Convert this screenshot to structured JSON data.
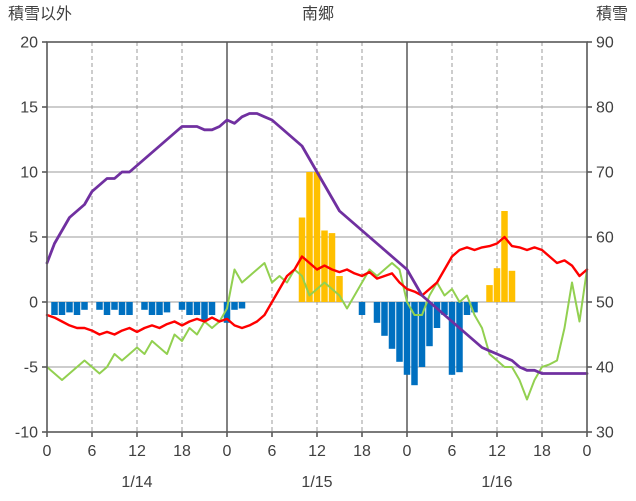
{
  "chart_data": {
    "type": "line",
    "title": "南郷",
    "left_axis": {
      "label": "積雪以外",
      "max": 20,
      "min": -10,
      "ticks": [
        20,
        15,
        10,
        5,
        0,
        -5,
        -10
      ]
    },
    "right_axis": {
      "label": "積雪",
      "max": 90,
      "min": 30,
      "ticks": [
        90,
        80,
        70,
        60,
        50,
        40,
        30
      ]
    },
    "hours_total": 72,
    "x_ticks": [
      "0",
      "6",
      "12",
      "18",
      "0",
      "6",
      "12",
      "18",
      "0",
      "6",
      "12",
      "18",
      "0"
    ],
    "date_labels": [
      "1/14",
      "1/15",
      "1/16"
    ],
    "grid": "on",
    "legend": "none",
    "colors": {
      "text": "#404040",
      "border": "#595959",
      "grid": "#9b9b9b",
      "grid_major": "#595959",
      "purple": "#7030A0",
      "red": "#FF0000",
      "green": "#92D050",
      "orange": "#FFC000",
      "blue": "#0070C0"
    },
    "series_lines": [
      {
        "name": "green-series",
        "color": "#92D050",
        "axis": "left",
        "width": 2,
        "values": [
          -5.0,
          -5.5,
          -6.0,
          -5.5,
          -5.0,
          -4.5,
          -5.0,
          -5.5,
          -5.0,
          -4.0,
          -4.5,
          -4.0,
          -3.5,
          -4.0,
          -3.0,
          -3.5,
          -4.0,
          -2.5,
          -3.0,
          -2.0,
          -2.5,
          -1.5,
          -2.0,
          -1.5,
          -0.5,
          2.5,
          1.5,
          2.0,
          2.5,
          3.0,
          1.5,
          2.0,
          1.5,
          2.5,
          2.0,
          0.5,
          1.0,
          1.5,
          1.0,
          0.5,
          -0.5,
          0.5,
          1.5,
          2.5,
          2.0,
          2.5,
          3.0,
          2.5,
          0.0,
          -1.0,
          -1.0,
          0.5,
          1.5,
          0.5,
          1.0,
          0.0,
          0.5,
          -1.0,
          -2.0,
          -4.0,
          -4.5,
          -5.0,
          -5.0,
          -6.0,
          -7.5,
          -6.0,
          -5.0,
          -4.8,
          -4.5,
          -2.0,
          1.5,
          -1.5,
          2.5
        ]
      },
      {
        "name": "red-series",
        "color": "#FF0000",
        "axis": "left",
        "width": 2.4,
        "values": [
          -1.0,
          -1.2,
          -1.5,
          -1.8,
          -2.0,
          -2.0,
          -2.2,
          -2.5,
          -2.3,
          -2.5,
          -2.2,
          -2.0,
          -2.3,
          -2.0,
          -1.8,
          -2.0,
          -1.7,
          -1.5,
          -1.8,
          -1.5,
          -1.3,
          -1.5,
          -1.2,
          -1.5,
          -1.3,
          -1.8,
          -2.0,
          -1.8,
          -1.5,
          -1.0,
          0.0,
          1.0,
          2.0,
          2.5,
          3.5,
          3.0,
          2.5,
          2.8,
          2.5,
          2.3,
          2.5,
          2.2,
          2.0,
          2.3,
          1.8,
          2.0,
          2.2,
          1.5,
          1.0,
          0.8,
          0.5,
          1.0,
          1.5,
          2.5,
          3.5,
          4.0,
          4.2,
          4.0,
          4.2,
          4.3,
          4.5,
          5.0,
          4.3,
          4.2,
          4.0,
          4.2,
          4.0,
          3.5,
          3.0,
          3.2,
          2.8,
          2.0,
          2.5
        ]
      },
      {
        "name": "purple-snow-depth",
        "color": "#7030A0",
        "axis": "right",
        "width": 2.8,
        "values": [
          56,
          59,
          61,
          63,
          64,
          65,
          67,
          68,
          69,
          69,
          70,
          70,
          71,
          72,
          73,
          74,
          75,
          76,
          77,
          77,
          77,
          76.5,
          76.5,
          77,
          78,
          77.5,
          78.5,
          79,
          79,
          78.5,
          78,
          77,
          76,
          75,
          74,
          72,
          70,
          68,
          66,
          64,
          63,
          62,
          61,
          60,
          59,
          58,
          57,
          56,
          55,
          53,
          51,
          50,
          49,
          48,
          47,
          46,
          45,
          44,
          43,
          42.5,
          42,
          41.5,
          41,
          40,
          39.5,
          39.5,
          39,
          39,
          39,
          39,
          39,
          39,
          39
        ]
      }
    ],
    "series_bars": [
      {
        "name": "orange-series",
        "color": "#FFC000",
        "axis": "left",
        "points": [
          [
            34,
            6.5
          ],
          [
            35,
            10
          ],
          [
            36,
            10
          ],
          [
            37,
            5.5
          ],
          [
            38,
            5.3
          ],
          [
            39,
            2.0
          ],
          [
            59,
            1.3
          ],
          [
            60,
            2.6
          ],
          [
            61,
            7
          ],
          [
            62,
            2.4
          ]
        ]
      },
      {
        "name": "blue-series",
        "color": "#0070C0",
        "axis": "left",
        "points": [
          [
            1,
            -1
          ],
          [
            2,
            -1
          ],
          [
            3,
            -0.8
          ],
          [
            4,
            -1
          ],
          [
            5,
            -0.6
          ],
          [
            7,
            -0.6
          ],
          [
            8,
            -1
          ],
          [
            9,
            -0.6
          ],
          [
            10,
            -1
          ],
          [
            11,
            -1
          ],
          [
            13,
            -0.6
          ],
          [
            14,
            -1
          ],
          [
            15,
            -1
          ],
          [
            16,
            -0.8
          ],
          [
            18,
            -0.6
          ],
          [
            19,
            -1
          ],
          [
            20,
            -1
          ],
          [
            21,
            -1.4
          ],
          [
            22,
            -1
          ],
          [
            24,
            -1.6
          ],
          [
            25,
            -0.6
          ],
          [
            26,
            -0.5
          ],
          [
            42,
            -1
          ],
          [
            44,
            -1.6
          ],
          [
            45,
            -2.6
          ],
          [
            46,
            -3.6
          ],
          [
            47,
            -4.6
          ],
          [
            48,
            -5.6
          ],
          [
            49,
            -6.4
          ],
          [
            50,
            -5.0
          ],
          [
            51,
            -3.4
          ],
          [
            52,
            -2.0
          ],
          [
            53,
            -1.0
          ],
          [
            54,
            -5.6
          ],
          [
            55,
            -5.4
          ],
          [
            56,
            -1.0
          ],
          [
            57,
            -0.8
          ]
        ]
      }
    ]
  }
}
